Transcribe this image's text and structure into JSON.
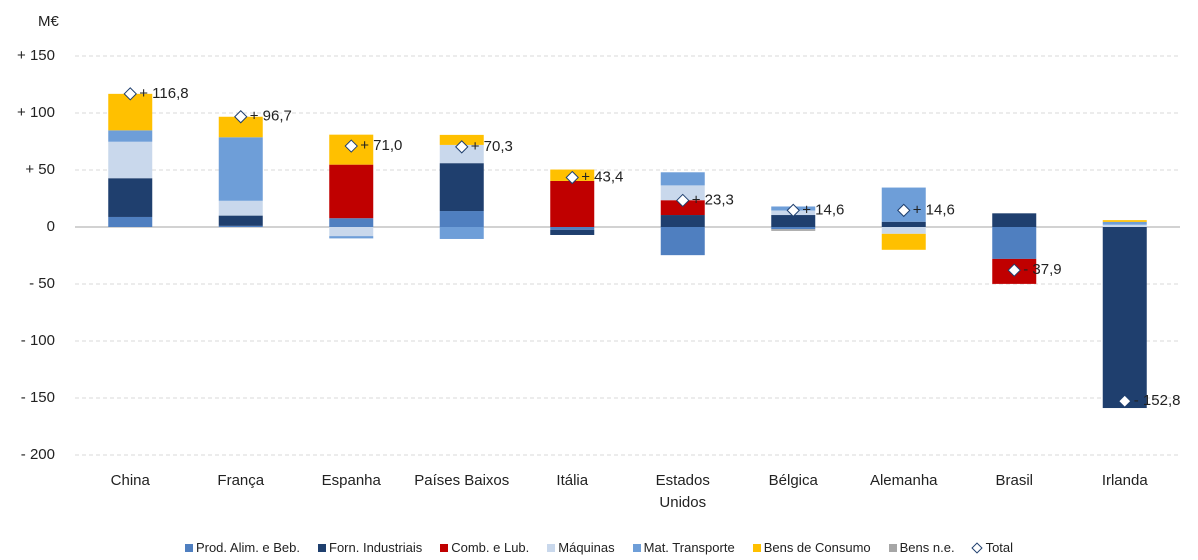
{
  "chart_data": {
    "type": "stacked_bar",
    "y_unit_label": "M€",
    "categories": [
      "China",
      "França",
      "Espanha",
      "Países Baixos",
      "Itália",
      "Estados Unidos",
      "Bélgica",
      "Alemanha",
      "Brasil",
      "Irlanda"
    ],
    "series": [
      {
        "name": "Prod. Alim. e Beb.",
        "color": "#4f7fc0",
        "values": [
          8.8,
          1,
          7.7,
          14,
          -2.5,
          -24.7,
          -1.9,
          0,
          -28,
          0
        ]
      },
      {
        "name": "Forn. Industriais",
        "color": "#1f3f6e",
        "values": [
          34,
          9,
          0,
          42,
          -4.5,
          10.5,
          10.5,
          4.6,
          12,
          -158.8
        ]
      },
      {
        "name": "Comb. e Lub.",
        "color": "#c00000",
        "values": [
          0,
          0,
          47,
          0,
          40.4,
          13,
          0,
          0,
          -21.9,
          0
        ]
      },
      {
        "name": "Máquinas",
        "color": "#c9d8ec",
        "values": [
          32,
          13,
          -8,
          16,
          0,
          13,
          4,
          -6,
          0,
          2
        ]
      },
      {
        "name": "Mat. Transporte",
        "color": "#6e9ed8",
        "values": [
          10,
          55.7,
          -2,
          -10.5,
          0,
          11.5,
          3.5,
          30,
          0,
          2.5
        ]
      },
      {
        "name": "Bens de Consumo",
        "color": "#ffc000",
        "values": [
          32,
          18,
          26.3,
          8.8,
          10,
          0,
          0,
          -14,
          0,
          1.5
        ]
      },
      {
        "name": "Bens n.e.",
        "color": "#a6a6a6",
        "values": [
          0,
          0,
          0,
          0,
          0,
          0,
          -1.5,
          0,
          0,
          0
        ]
      }
    ],
    "total": {
      "name": "Total",
      "values": [
        116.8,
        96.7,
        71.0,
        70.3,
        43.4,
        23.3,
        14.6,
        14.6,
        -37.9,
        -152.8
      ],
      "value_labels": [
        "+ 116,8",
        "+ 96,7",
        "+ 71,0",
        "+ 70,3",
        "+ 43,4",
        "+ 23,3",
        "+ 14,6",
        "+ 14,6",
        "- 37,9",
        "- 152,8"
      ]
    },
    "ylim": [
      -200,
      150
    ],
    "yticks": [
      {
        "value": 150,
        "label": "+ 150"
      },
      {
        "value": 100,
        "label": "+ 100"
      },
      {
        "value": 50,
        "label": "+ 50"
      },
      0,
      {
        "value": -50,
        "label": "- 50"
      },
      {
        "value": -100,
        "label": "- 100"
      },
      {
        "value": -150,
        "label": "- 150"
      },
      {
        "value": -200,
        "label": "- 200"
      }
    ],
    "grid": true,
    "legend": "bottom"
  }
}
